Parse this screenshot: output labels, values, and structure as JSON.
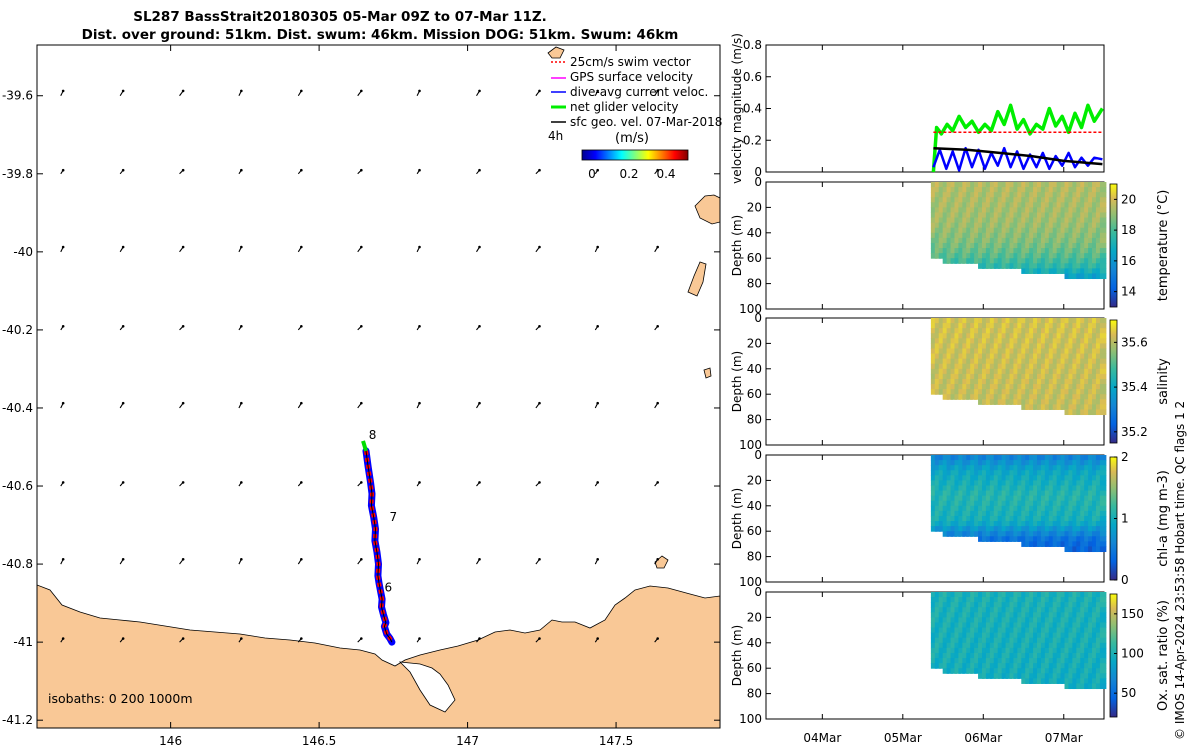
{
  "colors": {
    "land": "#f9c896",
    "swim_vector": "#ff0000",
    "gps_velocity": "#ff00ff",
    "dive_current": "#0000ff",
    "net_glider": "#00ee00",
    "sfc_geo": "#000000",
    "track_red": "#ff0000",
    "track_blue": "#0000ff",
    "track_green": "#00dd00"
  },
  "title": {
    "line1": "SL287 BassStrait20180305 05-Mar 09Z to 07-Mar 11Z.",
    "line2": "Dist. over ground: 51km. Dist. swum: 46km. Mission DOG: 51km. Swum: 46km"
  },
  "copyright": "© IMOS 14-Apr-2024 23:53:58 Hobart time. QC flags 1  2",
  "chart_data": [
    {
      "type": "map",
      "name": "glider-track-map",
      "xlim": [
        145.55,
        147.85
      ],
      "ylim": [
        -41.22,
        -39.47
      ],
      "xticks": [
        "146",
        "146.5",
        "147",
        "147.5"
      ],
      "xtick_values": [
        146,
        146.5,
        147,
        147.5
      ],
      "yticks": [
        "-39.6",
        "-39.8",
        "-40",
        "-40.2",
        "-40.4",
        "-40.6",
        "-40.8",
        "-41",
        "-41.2"
      ],
      "ytick_values": [
        -39.6,
        -39.8,
        -40,
        -40.2,
        -40.4,
        -40.6,
        -40.8,
        -41,
        -41.2
      ],
      "legend": {
        "entries": [
          {
            "label": "25cm/s swim vector",
            "color_key": "swim_vector"
          },
          {
            "label": "GPS surface velocity",
            "color_key": "gps_velocity"
          },
          {
            "label": "dive-avg current veloc.",
            "color_key": "dive_current"
          },
          {
            "label": "net glider velocity",
            "color_key": "net_glider"
          },
          {
            "label": "sfc geo. vel. 07-Mar-2018",
            "color_key": "sfc_geo"
          }
        ],
        "scale_label": "4h",
        "colorbar_label": "(m/s)",
        "colorbar_ticks": [
          "0",
          "0.2",
          "0.4"
        ]
      },
      "isobaths_label": "isobaths: 0   200   1000m",
      "day_labels": [
        {
          "label": "8",
          "lon": 146.667,
          "lat": -40.48
        },
        {
          "label": "7",
          "lon": 146.737,
          "lat": -40.69
        },
        {
          "label": "6",
          "lon": 146.72,
          "lat": -40.87
        }
      ],
      "track": {
        "lon": [
          146.658,
          146.665,
          146.673,
          146.678,
          146.676,
          146.684,
          146.69,
          146.688,
          146.695,
          146.7,
          146.698,
          146.702,
          146.707,
          146.712,
          146.71,
          146.717,
          146.725,
          146.72,
          146.728,
          146.738,
          146.745
        ],
        "lat": [
          -40.51,
          -40.55,
          -40.59,
          -40.62,
          -40.65,
          -40.68,
          -40.71,
          -40.74,
          -40.77,
          -40.8,
          -40.83,
          -40.85,
          -40.87,
          -40.89,
          -40.91,
          -40.93,
          -40.95,
          -40.96,
          -40.98,
          -40.99,
          -41.0
        ]
      },
      "current_vector_grid": {
        "lons": [
          145.63,
          145.83,
          146.03,
          146.23,
          146.43,
          146.63,
          146.83,
          147.03,
          147.23,
          147.43,
          147.63
        ],
        "lats": [
          -39.6,
          -39.8,
          -40.0,
          -40.2,
          -40.4,
          -40.6,
          -40.8,
          -41.0
        ],
        "u_ms": 0.02,
        "v_ms": 0.04
      }
    },
    {
      "type": "line",
      "name": "velocity-magnitude",
      "ylabel": "velocity magnitude (m/s)",
      "xlim_days": [
        3.3,
        7.5
      ],
      "ylim": [
        0,
        0.8
      ],
      "yticks": [
        "0",
        "0.2",
        "0.4",
        "0.6",
        "0.8"
      ],
      "ytick_values": [
        0,
        0.2,
        0.4,
        0.6,
        0.8
      ],
      "series": [
        {
          "name": "net glider velocity",
          "color_key": "net_glider",
          "x": [
            5.38,
            5.42,
            5.48,
            5.55,
            5.62,
            5.7,
            5.78,
            5.86,
            5.94,
            6.02,
            6.1,
            6.18,
            6.26,
            6.34,
            6.42,
            6.5,
            6.58,
            6.66,
            6.74,
            6.82,
            6.9,
            6.98,
            7.06,
            7.14,
            7.22,
            7.3,
            7.38,
            7.48
          ],
          "y": [
            0.0,
            0.28,
            0.24,
            0.3,
            0.26,
            0.35,
            0.28,
            0.32,
            0.25,
            0.3,
            0.26,
            0.38,
            0.3,
            0.42,
            0.27,
            0.33,
            0.24,
            0.3,
            0.27,
            0.4,
            0.29,
            0.35,
            0.25,
            0.37,
            0.28,
            0.42,
            0.32,
            0.4
          ]
        },
        {
          "name": "dive-avg current veloc.",
          "color_key": "dive_current",
          "x": [
            5.38,
            5.46,
            5.54,
            5.62,
            5.7,
            5.78,
            5.86,
            5.94,
            6.02,
            6.1,
            6.18,
            6.26,
            6.34,
            6.42,
            6.5,
            6.58,
            6.66,
            6.74,
            6.82,
            6.9,
            6.98,
            7.06,
            7.14,
            7.22,
            7.3,
            7.38,
            7.48
          ],
          "y": [
            0.03,
            0.14,
            0.02,
            0.13,
            0.01,
            0.15,
            0.03,
            0.14,
            0.02,
            0.12,
            0.04,
            0.15,
            0.03,
            0.13,
            0.02,
            0.11,
            0.03,
            0.12,
            0.02,
            0.1,
            0.04,
            0.12,
            0.03,
            0.09,
            0.04,
            0.09,
            0.08
          ]
        },
        {
          "name": "sfc geo. vel.",
          "color_key": "sfc_geo",
          "x": [
            5.38,
            5.8,
            6.2,
            6.6,
            7.0,
            7.48
          ],
          "y": [
            0.15,
            0.14,
            0.12,
            0.1,
            0.07,
            0.05
          ]
        },
        {
          "name": "swim speed",
          "color_key": "swim_vector",
          "x": [
            5.38,
            7.48
          ],
          "y": [
            0.25,
            0.25
          ]
        }
      ]
    },
    {
      "type": "heatmap",
      "name": "temperature-section",
      "variable": "temperature",
      "cbar_label": "temperature (°C)",
      "ylabel": "Depth (m)",
      "yticks": [
        "0",
        "20",
        "40",
        "60",
        "80",
        "100"
      ],
      "ylim": [
        0,
        100
      ],
      "cbar_range": [
        13,
        21
      ],
      "cbar_ticks": [
        "14",
        "16",
        "18",
        "20"
      ],
      "cbar_tick_values": [
        14,
        16,
        18,
        20
      ],
      "colormap": "parula",
      "x_start_day": 5.38,
      "x_end_day": 7.48,
      "bottom_depth": {
        "x": [
          5.38,
          5.8,
          6.2,
          6.6,
          7.0,
          7.48
        ],
        "y": [
          59,
          63,
          66,
          69,
          72,
          74
        ]
      },
      "profile": {
        "depth": [
          0,
          30,
          45,
          55,
          65,
          75
        ],
        "value": [
          19.5,
          19.2,
          18.8,
          18.3,
          17.5,
          16.0
        ]
      }
    },
    {
      "type": "heatmap",
      "name": "salinity-section",
      "variable": "salinity",
      "cbar_label": "salinity",
      "ylabel": "Depth (m)",
      "yticks": [
        "0",
        "20",
        "40",
        "60",
        "80",
        "100"
      ],
      "ylim": [
        0,
        100
      ],
      "cbar_range": [
        35.15,
        35.7
      ],
      "cbar_ticks": [
        "35.2",
        "35.4",
        "35.6"
      ],
      "cbar_tick_values": [
        35.2,
        35.4,
        35.6
      ],
      "colormap": "parula",
      "x_start_day": 5.38,
      "x_end_day": 7.48,
      "bottom_depth": {
        "x": [
          5.38,
          5.8,
          6.2,
          6.6,
          7.0,
          7.48
        ],
        "y": [
          59,
          63,
          66,
          69,
          72,
          74
        ]
      },
      "profile": {
        "depth": [
          0,
          40,
          75
        ],
        "value": [
          35.63,
          35.62,
          35.61
        ]
      }
    },
    {
      "type": "heatmap",
      "name": "chla-section",
      "variable": "chl-a",
      "cbar_label": "chl-a (mg m-3)",
      "ylabel": "Depth (m)",
      "yticks": [
        "0",
        "20",
        "40",
        "60",
        "80",
        "100"
      ],
      "ylim": [
        0,
        100
      ],
      "cbar_range": [
        0,
        2
      ],
      "cbar_ticks": [
        "0",
        "1",
        "2"
      ],
      "cbar_tick_values": [
        0,
        1,
        2
      ],
      "colormap": "parula",
      "x_start_day": 5.38,
      "x_end_day": 7.48,
      "bottom_depth": {
        "x": [
          5.38,
          5.8,
          6.2,
          6.6,
          7.0,
          7.48
        ],
        "y": [
          59,
          63,
          66,
          69,
          72,
          74
        ]
      },
      "profile": {
        "depth": [
          0,
          10,
          30,
          50,
          65,
          75
        ],
        "value": [
          0.6,
          0.9,
          1.1,
          1.0,
          0.4,
          0.3
        ]
      }
    },
    {
      "type": "heatmap",
      "name": "oxygen-section",
      "variable": "oxygen saturation",
      "cbar_label": "Ox. sat. ratio (%)",
      "ylabel": "Depth (m)",
      "yticks": [
        "0",
        "20",
        "40",
        "60",
        "80",
        "100"
      ],
      "ylim": [
        0,
        100
      ],
      "cbar_range": [
        20,
        175
      ],
      "cbar_ticks": [
        "50",
        "100",
        "150"
      ],
      "cbar_tick_values": [
        50,
        100,
        150
      ],
      "colormap": "parula",
      "x_start_day": 5.38,
      "x_end_day": 7.48,
      "bottom_depth": {
        "x": [
          5.38,
          5.8,
          6.2,
          6.6,
          7.0,
          7.48
        ],
        "y": [
          59,
          63,
          66,
          69,
          72,
          74
        ]
      },
      "profile": {
        "depth": [
          0,
          50,
          75
        ],
        "value": [
          100,
          98,
          95
        ]
      }
    }
  ],
  "time_axis": {
    "labels": [
      "04Mar",
      "05Mar",
      "06Mar",
      "07Mar"
    ],
    "values": [
      4,
      5,
      6,
      7
    ]
  }
}
